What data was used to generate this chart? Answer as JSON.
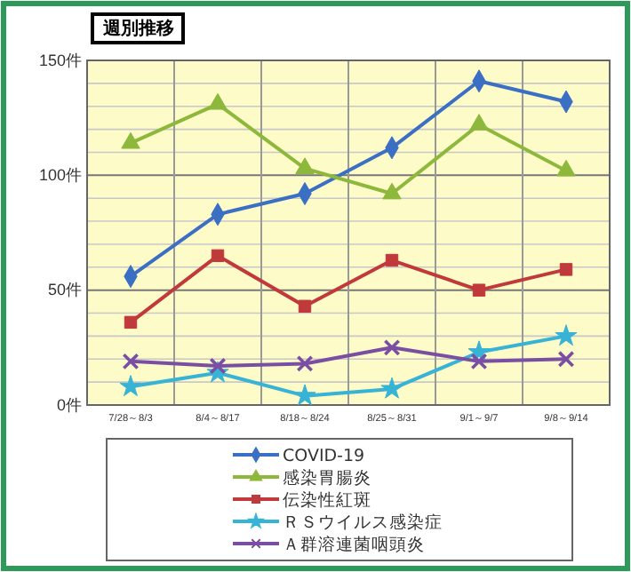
{
  "chart_data": {
    "type": "line",
    "title": "週別推移",
    "categories": [
      "7/28～8/3",
      "8/4～8/17",
      "8/18～8/24",
      "8/25～8/31",
      "9/1～9/7",
      "9/8～9/14"
    ],
    "series": [
      {
        "name": "COVID-19",
        "color": "#3a6fc4",
        "marker": "diamond",
        "values": [
          56,
          83,
          92,
          112,
          141,
          132
        ]
      },
      {
        "name": "感染胃腸炎",
        "color": "#8db83c",
        "marker": "triangle",
        "values": [
          114,
          131,
          103,
          92,
          122,
          102
        ]
      },
      {
        "name": "伝染性紅斑",
        "color": "#c0393b",
        "marker": "square",
        "values": [
          36,
          65,
          43,
          63,
          50,
          59
        ]
      },
      {
        "name": "ＲＳウイルス感染症",
        "color": "#37b3d6",
        "marker": "star",
        "values": [
          8,
          14,
          4,
          7,
          23,
          30
        ]
      },
      {
        "name": "Ａ群溶連菌咽頭炎",
        "color": "#7a4fa3",
        "marker": "cross",
        "values": [
          19,
          17,
          18,
          25,
          19,
          20
        ]
      }
    ],
    "ylim": [
      0,
      150
    ],
    "yticks": [
      {
        "value": 0,
        "label": "0件"
      },
      {
        "value": 10,
        "label": null
      },
      {
        "value": 20,
        "label": null
      },
      {
        "value": 30,
        "label": null
      },
      {
        "value": 40,
        "label": null
      },
      {
        "value": 50,
        "label": "50件"
      },
      {
        "value": 60,
        "label": null
      },
      {
        "value": 70,
        "label": null
      },
      {
        "value": 80,
        "label": null
      },
      {
        "value": 90,
        "label": null
      },
      {
        "value": 100,
        "label": "100件"
      },
      {
        "value": 110,
        "label": null
      },
      {
        "value": 120,
        "label": null
      },
      {
        "value": 130,
        "label": null
      },
      {
        "value": 140,
        "label": null
      },
      {
        "value": 150,
        "label": "150件"
      }
    ],
    "grid": true,
    "legend": "bottom",
    "line_style": "solid"
  }
}
